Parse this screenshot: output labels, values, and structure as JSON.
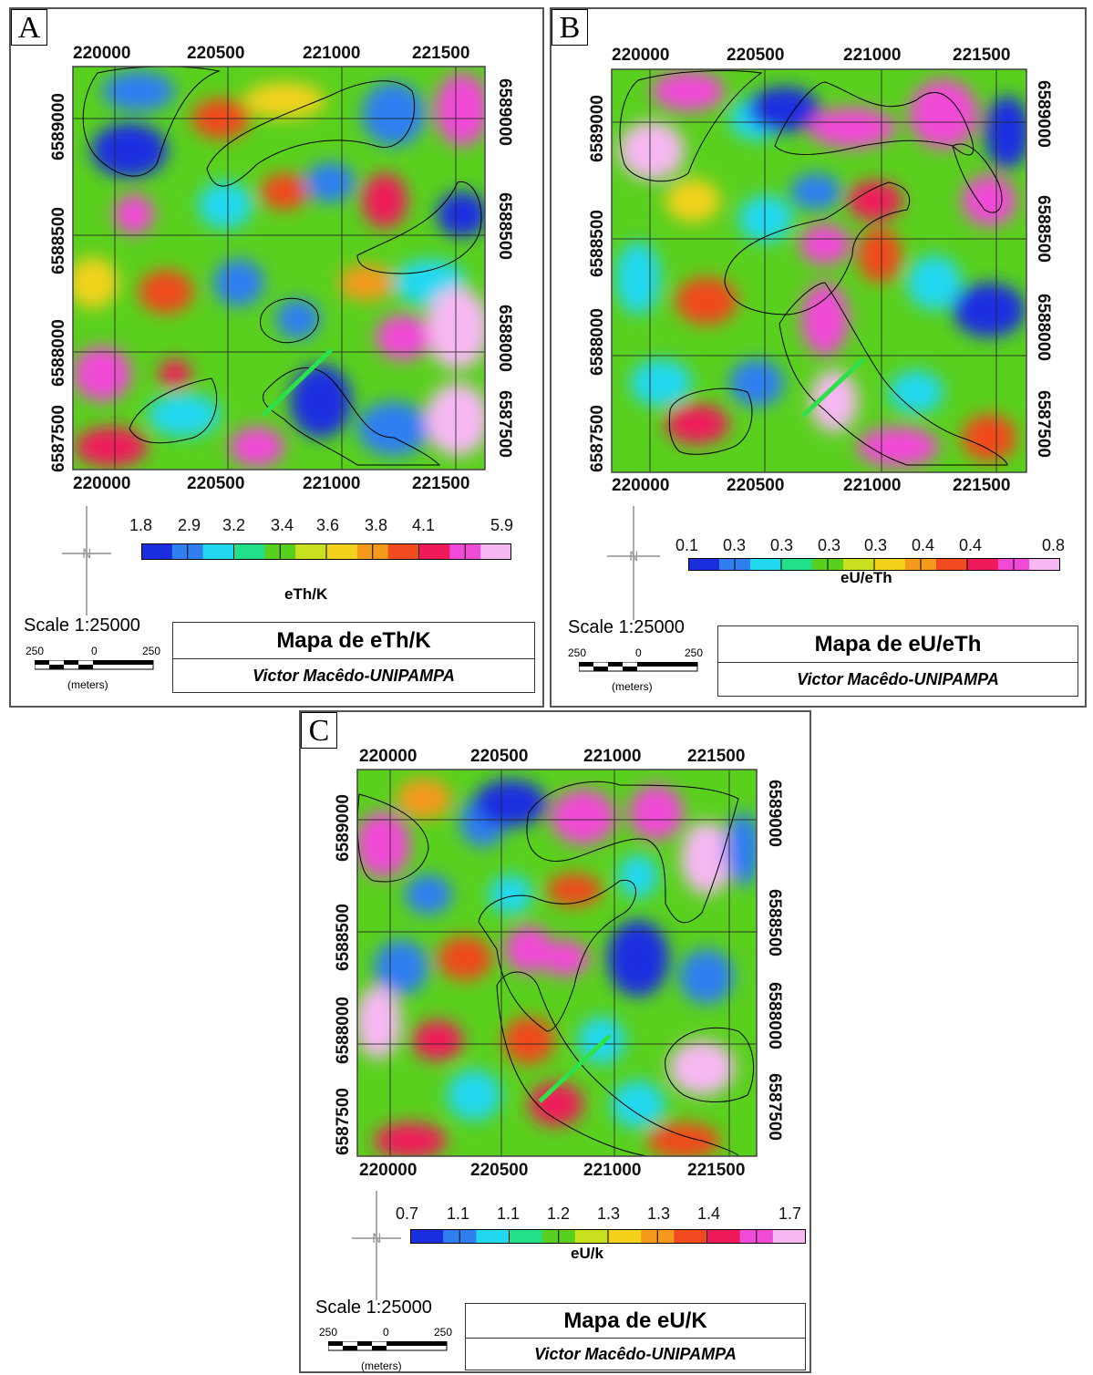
{
  "panels": [
    {
      "letter": "A",
      "x_ticks": [
        "220000",
        "220500",
        "221000",
        "221500"
      ],
      "y_ticks": [
        "6589000",
        "6588500",
        "6588000",
        "6587500"
      ],
      "legend": {
        "values": [
          "1.8",
          "2.9",
          "3.2",
          "3.4",
          "3.6",
          "3.8",
          "4.1",
          "5.9"
        ],
        "title": "eTh/K"
      },
      "scale": "Scale 1:25000",
      "scalebar": {
        "left": "250",
        "mid": "0",
        "right": "250",
        "unit": "(meters)"
      },
      "title": "Mapa de eTh/K",
      "author": "Victor Macêdo-UNIPAMPA"
    },
    {
      "letter": "B",
      "x_ticks": [
        "220000",
        "220500",
        "221000",
        "221500"
      ],
      "y_ticks": [
        "6589000",
        "6588500",
        "6588000",
        "6587500"
      ],
      "legend": {
        "values": [
          "0.1",
          "0.3",
          "0.3",
          "0.3",
          "0.3",
          "0.4",
          "0.4",
          "0.8"
        ],
        "title": "eU/eTh"
      },
      "scale": "Scale 1:25000",
      "scalebar": {
        "left": "250",
        "mid": "0",
        "right": "250",
        "unit": "(meters)"
      },
      "title": "Mapa de eU/eTh",
      "author": "Victor Macêdo-UNIPAMPA"
    },
    {
      "letter": "C",
      "x_ticks": [
        "220000",
        "220500",
        "221000",
        "221500"
      ],
      "y_ticks": [
        "6589000",
        "6588500",
        "6588000",
        "6587500"
      ],
      "legend": {
        "values": [
          "0.7",
          "1.1",
          "1.1",
          "1.2",
          "1.3",
          "1.3",
          "1.4",
          "1.7"
        ],
        "title": "eU/k"
      },
      "scale": "Scale 1:25000",
      "scalebar": {
        "left": "250",
        "mid": "0",
        "right": "250",
        "unit": "(meters)"
      },
      "title": "Mapa de eU/K",
      "author": "Victor Macêdo-UNIPAMPA"
    }
  ],
  "palette": [
    "#1a2ee0",
    "#2f7ff0",
    "#22d8f0",
    "#22e08a",
    "#5ad01e",
    "#c8e01e",
    "#f2d21a",
    "#f59a1c",
    "#f04a1e",
    "#ee1a5a",
    "#f04ad6",
    "#f6b8f2"
  ],
  "profile_line_color": "#2ee04a"
}
